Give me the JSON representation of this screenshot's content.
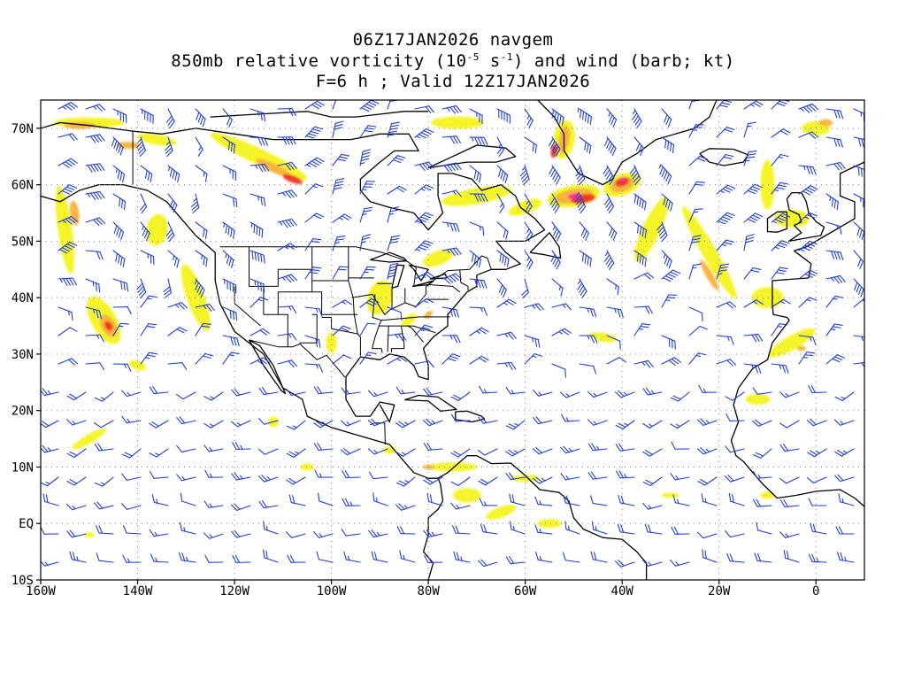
{
  "title": {
    "line1": "06Z17JAN2026 navgem",
    "line2_prefix": "850mb relative vorticity (10",
    "line2_exp1": "-5",
    "line2_mid": " s",
    "line2_exp2": "-1",
    "line2_suffix": ") and wind (barb; kt)",
    "line3": "F=6 h ; Valid 12Z17JAN2026"
  },
  "map": {
    "projection": "cylindrical equidistant",
    "lon_range": [
      -160,
      10
    ],
    "lat_range": [
      -10,
      75
    ],
    "grid": "dotted",
    "lon_ticks": [
      {
        "value": -160,
        "label": "160W"
      },
      {
        "value": -140,
        "label": "140W"
      },
      {
        "value": -120,
        "label": "120W"
      },
      {
        "value": -100,
        "label": "100W"
      },
      {
        "value": -80,
        "label": "80W"
      },
      {
        "value": -60,
        "label": "60W"
      },
      {
        "value": -40,
        "label": "40W"
      },
      {
        "value": -20,
        "label": "20W"
      },
      {
        "value": 0,
        "label": "0"
      }
    ],
    "lat_ticks": [
      {
        "value": 70,
        "label": "70N"
      },
      {
        "value": 60,
        "label": "60N"
      },
      {
        "value": 50,
        "label": "50N"
      },
      {
        "value": 40,
        "label": "40N"
      },
      {
        "value": 30,
        "label": "30N"
      },
      {
        "value": 20,
        "label": "20N"
      },
      {
        "value": 10,
        "label": "10N"
      },
      {
        "value": 0,
        "label": "EQ"
      },
      {
        "value": -10,
        "label": "10S"
      }
    ],
    "colors": {
      "barb": "#1f3fe0",
      "coast": "#000000",
      "vort_low": "#f3f31a",
      "vort_mid": "#f6b23c",
      "vort_high": "#ee3322",
      "vort_max": "#ff1aa8"
    }
  }
}
